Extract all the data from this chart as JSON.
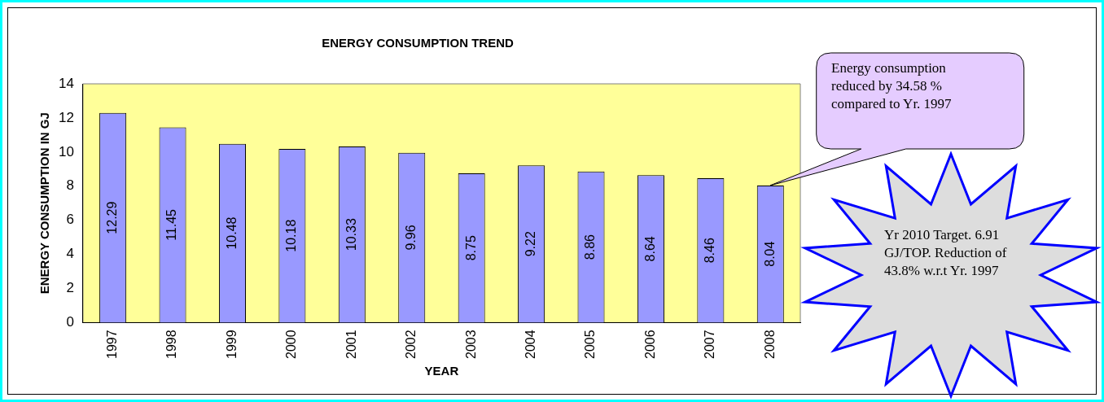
{
  "chart_data": {
    "type": "bar",
    "title": "ENERGY CONSUMPTION TREND",
    "xlabel": "YEAR",
    "ylabel": "ENERGY CONSUMPTION IN GJ",
    "categories": [
      "1997",
      "1998",
      "1999",
      "2000",
      "2001",
      "2002",
      "2003",
      "2004",
      "2005",
      "2006",
      "2007",
      "2008"
    ],
    "values": [
      12.29,
      11.45,
      10.48,
      10.18,
      10.33,
      9.96,
      8.75,
      9.22,
      8.86,
      8.64,
      8.46,
      8.04
    ],
    "color": "#9999ff",
    "ylim": [
      0,
      14
    ],
    "yticks": [
      0,
      2,
      4,
      6,
      8,
      10,
      12,
      14
    ],
    "grid": false,
    "legend": false,
    "data_labels": true,
    "annotations": [
      "Energy consumption reduced by 34.58 % compared to Yr. 1997",
      "Yr 2010 Target. 6.91 GJ/TOP. Reduction of 43.8% w.r.t Yr. 1997"
    ]
  }
}
